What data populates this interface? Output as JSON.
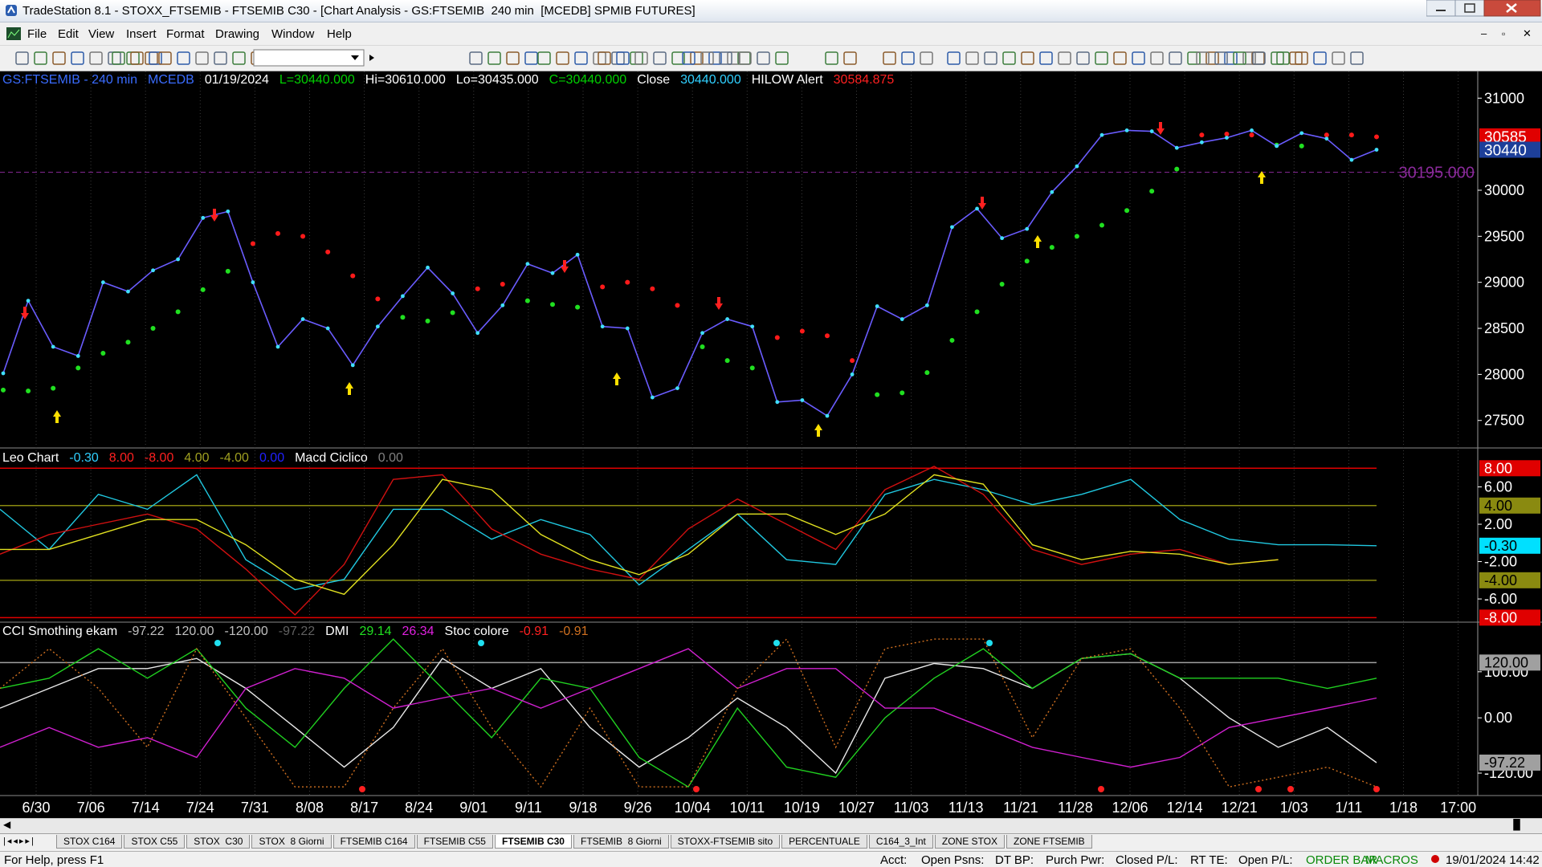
{
  "window": {
    "title": "TradeStation 8.1 - STOXX_FTSEMIB - FTSEMIB C30 - [Chart Analysis - GS:FTSEMIB  240 min  [MCEDB] SPMIB FUTURES]",
    "menu": [
      "File",
      "Edit",
      "View",
      "Insert",
      "Format",
      "Drawing",
      "Window",
      "Help"
    ]
  },
  "price_panel": {
    "header": [
      {
        "text": "GS:FTSEMIB - 240 min",
        "color": "#3a6cff"
      },
      {
        "text": "MCEDB",
        "color": "#3a6cff"
      },
      {
        "text": "01/19/2024",
        "color": "#ffffff"
      },
      {
        "text": "L=30440.000",
        "color": "#00d000"
      },
      {
        "text": "Hi=30610.000",
        "color": "#ffffff"
      },
      {
        "text": "Lo=30435.000",
        "color": "#ffffff"
      },
      {
        "text": "C=30440.000",
        "color": "#00d000"
      },
      {
        "text": "Close",
        "color": "#ffffff"
      },
      {
        "text": "30440.000",
        "color": "#30d0ff"
      },
      {
        "text": "HILOW Alert",
        "color": "#ffffff"
      },
      {
        "text": "30584.875",
        "color": "#ff2020"
      }
    ],
    "ylim": [
      27210,
      31290
    ],
    "yticks": [
      27500,
      28000,
      28500,
      29000,
      29500,
      30000,
      31000
    ],
    "close": {
      "color": "#6a5cff",
      "dot_color": "#40e0ff",
      "values": [
        28012,
        28800,
        28300,
        28200,
        29000,
        28900,
        29130,
        29250,
        29700,
        29770,
        29000,
        28300,
        28600,
        28500,
        28100,
        28520,
        28850,
        29160,
        28880,
        28450,
        28750,
        29200,
        29100,
        29300,
        28520,
        28500,
        27750,
        27850,
        28450,
        28600,
        28520,
        27700,
        27720,
        27550,
        28000,
        28740,
        28600,
        28750,
        29600,
        29800,
        29480,
        29580,
        29980,
        30260,
        30600,
        30650,
        30640,
        30460,
        30520,
        30570,
        30650,
        30480,
        30620,
        30560,
        30330,
        30440
      ]
    },
    "stops": [
      {
        "color": "#20e020",
        "values": [
          27830,
          27820,
          27850,
          28070,
          28230,
          28350,
          28500,
          28680,
          28920,
          29120,
          null,
          null,
          null,
          null,
          null,
          null,
          28620,
          28580,
          28670,
          null,
          null,
          28800,
          28760,
          28730,
          null,
          null,
          null,
          null,
          28300,
          28150,
          28070,
          null,
          null,
          null,
          null,
          27780,
          27800,
          28020,
          28370,
          28680,
          28980,
          29230,
          29380,
          29500,
          29620,
          29780,
          29990,
          30230,
          null,
          null,
          null,
          30490,
          30480,
          null,
          null,
          null
        ]
      },
      {
        "color": "#ff1a1a",
        "values": [
          null,
          null,
          null,
          null,
          null,
          null,
          null,
          null,
          null,
          null,
          29420,
          29530,
          29500,
          29330,
          29070,
          28820,
          null,
          null,
          null,
          28930,
          28980,
          null,
          null,
          null,
          28950,
          29000,
          28930,
          28750,
          null,
          null,
          null,
          28400,
          28470,
          28420,
          28150,
          null,
          null,
          null,
          null,
          null,
          null,
          null,
          null,
          null,
          null,
          null,
          null,
          null,
          30600,
          30610,
          30600,
          null,
          null,
          30600,
          30600,
          30580
        ]
      }
    ],
    "markers": [
      {
        "value": 30585,
        "label": "30585",
        "color": "#e00000"
      },
      {
        "value": 30440,
        "label": "30440",
        "color": "#1d3f9a"
      }
    ],
    "level": {
      "value": 30195,
      "label": "30195.000",
      "color": "#8a2a9a"
    }
  },
  "leo_panel": {
    "header": [
      {
        "text": "Leo Chart",
        "color": "#ffffff"
      },
      {
        "text": "-0.30",
        "color": "#30d0ff"
      },
      {
        "text": "8.00",
        "color": "#ff2020"
      },
      {
        "text": "-8.00",
        "color": "#ff2020"
      },
      {
        "text": "4.00",
        "color": "#a0a020"
      },
      {
        "text": "-4.00",
        "color": "#a0a020"
      },
      {
        "text": "0.00",
        "color": "#2020ff"
      },
      {
        "text": "Macd Ciclico",
        "color": "#ffffff"
      },
      {
        "text": "0.00",
        "color": "#808080"
      }
    ],
    "ylim": [
      -8.4,
      10
    ],
    "yticks": [
      {
        "value": 6,
        "label": "6.00"
      },
      {
        "value": 2,
        "label": "2.00"
      },
      {
        "value": -2,
        "label": "-2.00"
      },
      {
        "value": -6,
        "label": "-6.00"
      }
    ],
    "levels": [
      {
        "value": 8,
        "label": "8.00",
        "color": "#e00000",
        "text_color": "#ffffff"
      },
      {
        "value": 4,
        "label": "4.00",
        "color": "#8a8a10",
        "text_color": "#000000"
      },
      {
        "value": -4,
        "label": "-4.00",
        "color": "#8a8a10",
        "text_color": "#000000"
      },
      {
        "value": -8,
        "label": "-8.00",
        "color": "#e00000",
        "text_color": "#ffffff"
      }
    ],
    "current": {
      "value": -0.3,
      "label": "-0.30",
      "color": "#00e0ff"
    },
    "series": [
      {
        "color": "#20c8e0",
        "values": [
          3.6,
          -0.7,
          5.2,
          3.6,
          7.3,
          -1.8,
          -5,
          -3.9,
          3.6,
          3.6,
          0.4,
          2.5,
          0.9,
          -4.5,
          -0.7,
          3.1,
          -1.8,
          -2.3,
          5.2,
          6.8,
          5.7,
          4.1,
          5.2,
          6.8,
          2.5,
          0.4,
          -0.2,
          -0.2,
          -0.3
        ]
      },
      {
        "color": "#d01010",
        "values": [
          -1.2,
          0.9,
          2,
          3.1,
          1.5,
          -2.8,
          -7.7,
          -2.3,
          6.8,
          7.3,
          1.5,
          -1.2,
          -2.8,
          -3.9,
          1.5,
          4.7,
          2,
          -0.7,
          5.7,
          8.2,
          5.2,
          -0.7,
          -2.3,
          -1.2,
          -0.7,
          -2.3,
          -1.8,
          null,
          null
        ]
      },
      {
        "color": "#e0e020",
        "values": [
          -0.7,
          -0.7,
          0.9,
          2.5,
          2.5,
          -0.2,
          -3.9,
          -5.5,
          -0.2,
          6.8,
          5.7,
          0.9,
          -1.8,
          -3.4,
          -1.2,
          3.1,
          3.1,
          0.9,
          3.1,
          7.3,
          6.3,
          -0.2,
          -1.8,
          -0.9,
          -1.2,
          -2.3,
          -1.8,
          null,
          null
        ]
      }
    ]
  },
  "cci_panel": {
    "header": [
      {
        "text": "CCI Smothing ekam",
        "color": "#ffffff"
      },
      {
        "text": "-97.22",
        "color": "#c0c0c0"
      },
      {
        "text": "120.00",
        "color": "#c0c0c0"
      },
      {
        "text": "-120.00",
        "color": "#c0c0c0"
      },
      {
        "text": "-97.22",
        "color": "#606060"
      },
      {
        "text": "DMI",
        "color": "#ffffff"
      },
      {
        "text": "29.14",
        "color": "#20e020"
      },
      {
        "text": "26.34",
        "color": "#e020e0"
      },
      {
        "text": "Stoc colore",
        "color": "#ffffff"
      },
      {
        "text": "-0.91",
        "color": "#ff2020"
      },
      {
        "text": "-0.91",
        "color": "#d07020"
      }
    ],
    "ylim": [
      -167,
      206
    ],
    "yticks": [
      {
        "value": 100,
        "label": "100.00"
      },
      {
        "value": 0,
        "label": "0.00"
      },
      {
        "value": -120,
        "label": "-120.00"
      }
    ],
    "levels": [
      {
        "value": 120,
        "label": "120.00",
        "color": "#a0a0a0",
        "text_color": "#000000"
      }
    ],
    "current": {
      "value": -97.22,
      "label": "-97.22",
      "color": "#a0a0a0"
    },
    "series": [
      {
        "color": "#e8e8e8",
        "dashed": false,
        "values": [
          21,
          64,
          107,
          107,
          129,
          64,
          -21,
          -107,
          -21,
          129,
          64,
          107,
          -21,
          -107,
          -43,
          43,
          -21,
          -120,
          86,
          118,
          107,
          64,
          129,
          139,
          86,
          0,
          -64,
          -21,
          -97.22
        ]
      },
      {
        "color": "#20d020",
        "dashed": false,
        "values": [
          64,
          86,
          150,
          86,
          150,
          21,
          -64,
          64,
          171,
          64,
          -43,
          86,
          64,
          -86,
          -150,
          21,
          -107,
          -129,
          0,
          86,
          150,
          64,
          129,
          139,
          86,
          86,
          86,
          64,
          86
        ]
      },
      {
        "color": "#d020d0",
        "dashed": false,
        "values": [
          -64,
          -21,
          -64,
          -43,
          -86,
          64,
          107,
          86,
          21,
          43,
          64,
          21,
          64,
          107,
          150,
          64,
          107,
          107,
          21,
          21,
          -21,
          -64,
          -86,
          -107,
          -86,
          -21,
          0,
          21,
          43
        ]
      },
      {
        "color": "#d07020",
        "dashed": true,
        "values": [
          64,
          150,
          64,
          -64,
          150,
          0,
          -150,
          -150,
          21,
          150,
          -21,
          -150,
          21,
          -150,
          -150,
          64,
          171,
          -64,
          150,
          171,
          171,
          -43,
          129,
          150,
          21,
          -150,
          -129,
          -107,
          -150
        ]
      }
    ]
  },
  "x_axis": {
    "categories": [
      "6/30",
      "7/06",
      "7/14",
      "7/24",
      "7/31",
      "8/08",
      "8/17",
      "8/24",
      "9/01",
      "9/11",
      "9/18",
      "9/26",
      "10/04",
      "10/11",
      "10/19",
      "10/27",
      "11/03",
      "11/13",
      "11/21",
      "11/28",
      "12/06",
      "12/14",
      "12/21",
      "1/03",
      "1/11",
      "1/18",
      "17:00"
    ]
  },
  "tabs": {
    "items": [
      "STOX C164",
      "STOX C55",
      "STOX  C30",
      "STOX  8 Giorni",
      "FTSEMIB C164",
      "FTSEMIB C55",
      "FTSEMIB C30",
      "FTSEMIB  8 Giorni",
      "STOXX-FTSEMIB sito",
      "PERCENTUALE",
      "C164_3_Int",
      "ZONE STOX",
      "ZONE FTSEMIB"
    ],
    "active": 6
  },
  "status": {
    "help": "For Help, press F1",
    "fields": [
      "Acct:",
      "Open Psns:",
      "DT BP:",
      "Purch Pwr:",
      "Closed P/L:",
      "RT TE:",
      "Open P/L:"
    ],
    "flags": [
      "ORDER BAR",
      "MACROS"
    ],
    "clock": "19/01/2024 14:42"
  }
}
